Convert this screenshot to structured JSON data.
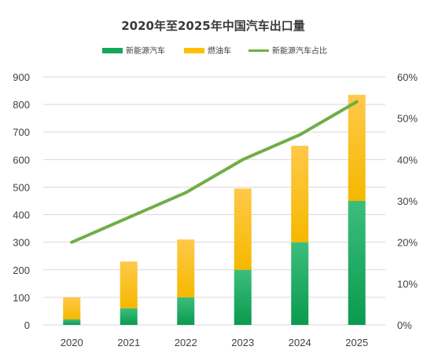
{
  "chart_data": {
    "type": "bar",
    "title": "2020年至2025年中国汽车出口量",
    "categories": [
      "2020",
      "2021",
      "2022",
      "2023",
      "2024",
      "2025"
    ],
    "series": [
      {
        "name": "新能源汽车",
        "type": "bar",
        "stack": "total",
        "axis": "left",
        "values": [
          20,
          60,
          100,
          200,
          300,
          450
        ],
        "color": "#14a85a"
      },
      {
        "name": "燃油车",
        "type": "bar",
        "stack": "total",
        "axis": "left",
        "values": [
          80,
          170,
          210,
          295,
          350,
          385
        ],
        "color": "#ffc000"
      },
      {
        "name": "新能源汽车占比",
        "type": "line",
        "axis": "right",
        "values": [
          0.2,
          0.26,
          0.32,
          0.4,
          0.46,
          0.54
        ],
        "color": "#70ad47"
      }
    ],
    "ylim": [
      0,
      900
    ],
    "yticks": [
      0,
      100,
      200,
      300,
      400,
      500,
      600,
      700,
      800,
      900
    ],
    "y2lim": [
      0,
      0.6
    ],
    "y2ticks": [
      "0%",
      "10%",
      "20%",
      "30%",
      "40%",
      "50%",
      "60%"
    ],
    "xlabel": "",
    "ylabel": "",
    "legend_position": "top",
    "grid": true
  }
}
